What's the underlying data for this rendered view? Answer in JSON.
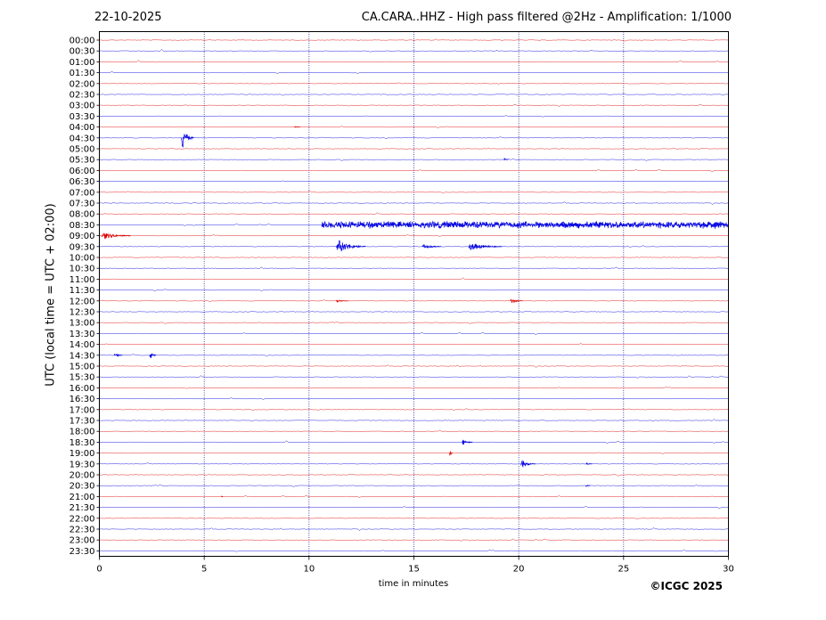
{
  "header": {
    "date": "22-10-2025",
    "title": "CA.CARA..HHZ - High pass filtered @2Hz - Amplification: 1/1000"
  },
  "footer": {
    "credit": "©ICGC 2025"
  },
  "chart_data": {
    "type": "line",
    "xlabel": "time in minutes",
    "ylabel": "UTC (local time = UTC + 02:00)",
    "xlim": [
      0,
      30
    ],
    "x_ticks": [
      0,
      5,
      10,
      15,
      20,
      25,
      30
    ],
    "vertical_grid_minutes": [
      5,
      10,
      15,
      20,
      25
    ],
    "row_labels": [
      "00:00",
      "00:30",
      "01:00",
      "01:30",
      "02:00",
      "02:30",
      "03:00",
      "03:30",
      "04:00",
      "04:30",
      "05:00",
      "05:30",
      "06:00",
      "06:30",
      "07:00",
      "07:30",
      "08:00",
      "08:30",
      "09:00",
      "09:30",
      "10:00",
      "10:30",
      "11:00",
      "11:30",
      "12:00",
      "12:30",
      "13:00",
      "13:30",
      "14:00",
      "14:30",
      "15:00",
      "15:30",
      "16:00",
      "16:30",
      "17:00",
      "17:30",
      "18:00",
      "18:30",
      "19:00",
      "19:30",
      "20:00",
      "20:30",
      "21:00",
      "21:30",
      "22:00",
      "22:30",
      "23:00",
      "23:30"
    ],
    "trace_colors": [
      "#e00000",
      "#0000e0"
    ],
    "events": [
      {
        "row": "04:30",
        "minute": 3.9,
        "amplitude": 1.4,
        "duration": 0.6
      },
      {
        "row": "05:30",
        "minute": 19.3,
        "amplitude": 0.15,
        "duration": 0.2
      },
      {
        "row": "04:00",
        "minute": 9.3,
        "amplitude": 0.1,
        "duration": 0.3
      },
      {
        "row": "08:30",
        "minute": 10.6,
        "amplitude": 0.35,
        "duration": 19.4
      },
      {
        "row": "08:30",
        "minute": 22.0,
        "amplitude": 0.5,
        "duration": 1.5
      },
      {
        "row": "08:30",
        "minute": 29.3,
        "amplitude": 0.5,
        "duration": 0.7
      },
      {
        "row": "09:00",
        "minute": 0.1,
        "amplitude": 0.45,
        "duration": 1.4
      },
      {
        "row": "09:30",
        "minute": 11.3,
        "amplitude": 0.8,
        "duration": 1.4
      },
      {
        "row": "09:30",
        "minute": 15.4,
        "amplitude": 0.3,
        "duration": 0.9
      },
      {
        "row": "09:30",
        "minute": 17.6,
        "amplitude": 0.45,
        "duration": 1.6
      },
      {
        "row": "12:00",
        "minute": 11.3,
        "amplitude": 0.15,
        "duration": 0.6
      },
      {
        "row": "12:00",
        "minute": 19.6,
        "amplitude": 0.3,
        "duration": 0.6
      },
      {
        "row": "14:30",
        "minute": 0.7,
        "amplitude": 0.35,
        "duration": 0.4
      },
      {
        "row": "14:30",
        "minute": 2.4,
        "amplitude": 0.55,
        "duration": 0.3
      },
      {
        "row": "18:30",
        "minute": 17.3,
        "amplitude": 0.35,
        "duration": 0.5
      },
      {
        "row": "19:00",
        "minute": 16.7,
        "amplitude": 0.5,
        "duration": 0.15
      },
      {
        "row": "19:30",
        "minute": 20.1,
        "amplitude": 0.45,
        "duration": 0.7
      },
      {
        "row": "19:30",
        "minute": 23.2,
        "amplitude": 0.15,
        "duration": 0.3
      },
      {
        "row": "20:30",
        "minute": 23.2,
        "amplitude": 0.2,
        "duration": 0.2
      },
      {
        "row": "21:00",
        "minute": 5.8,
        "amplitude": 0.15,
        "duration": 0.1
      }
    ]
  }
}
